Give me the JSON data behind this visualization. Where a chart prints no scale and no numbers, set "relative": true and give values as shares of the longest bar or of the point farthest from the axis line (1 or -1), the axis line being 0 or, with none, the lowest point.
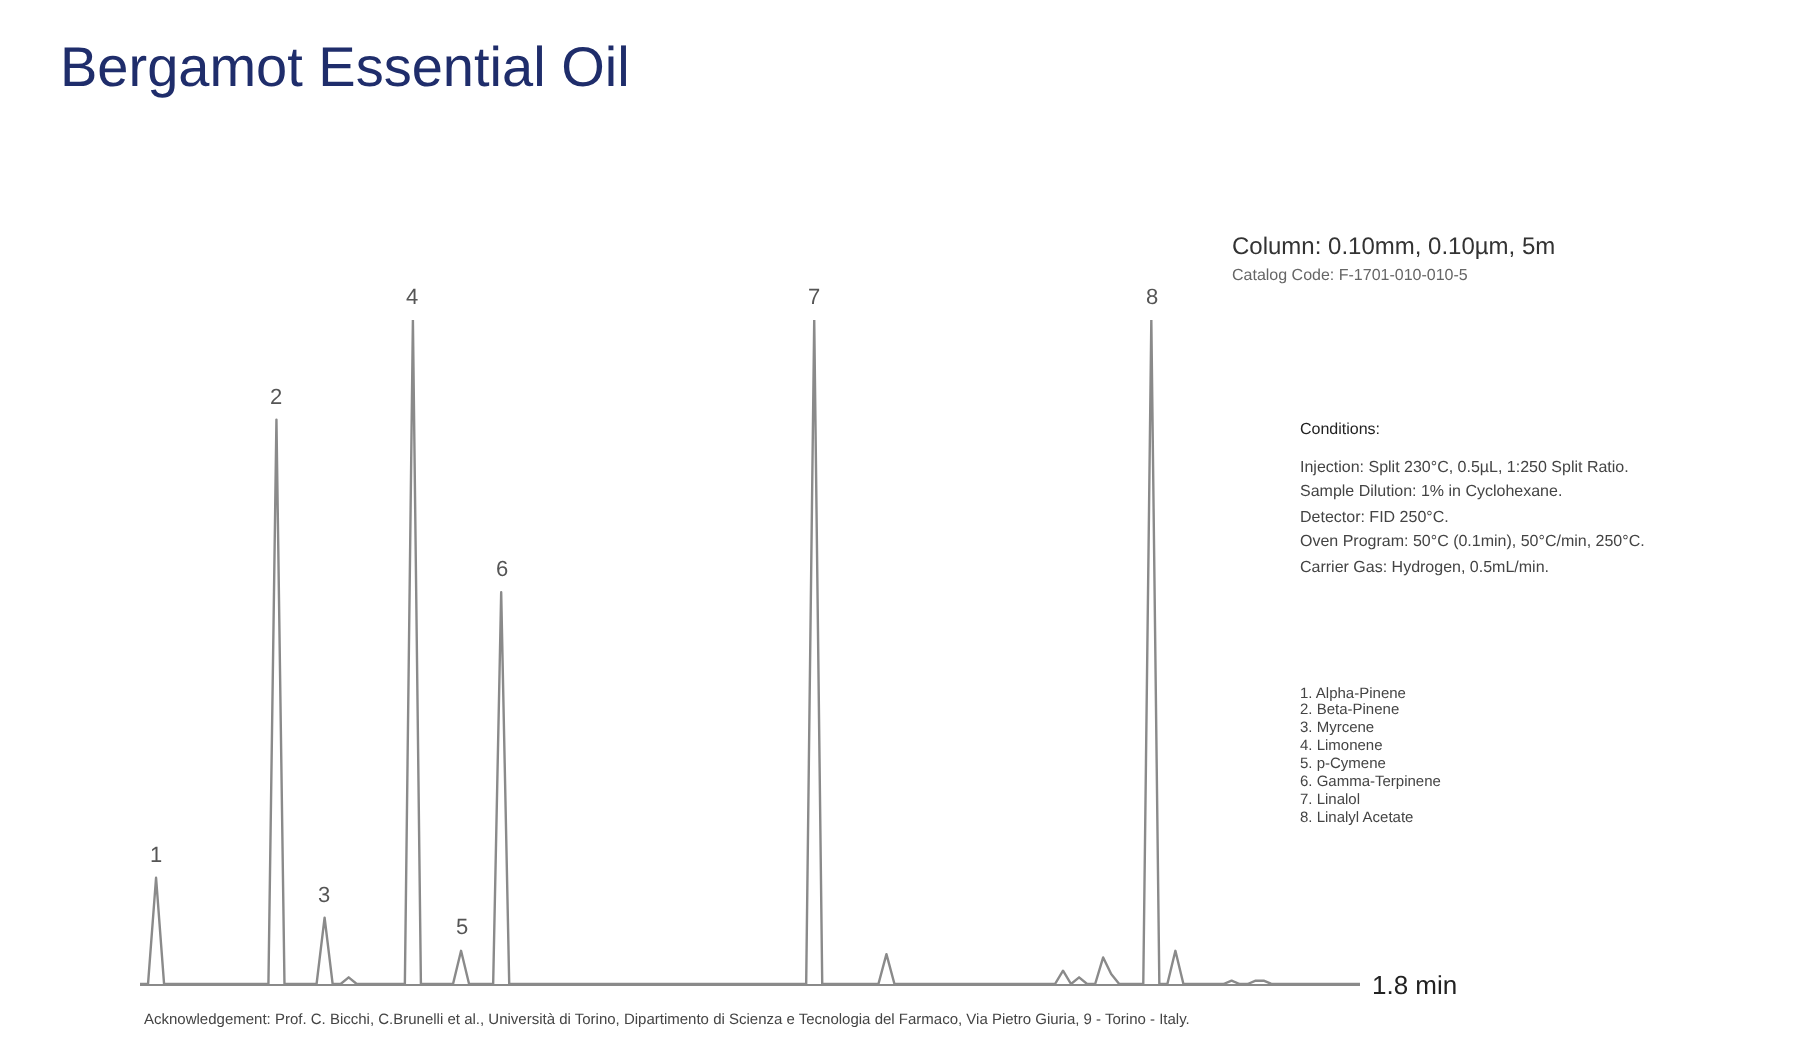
{
  "chart_data": {
    "type": "line",
    "title": "Bergamot Essential Oil",
    "relative": true,
    "categories": [
      null,
      null,
      null,
      null,
      null,
      null,
      null,
      null,
      null,
      null,
      null,
      null,
      null,
      null,
      null,
      null,
      null,
      null,
      null,
      null,
      null,
      null,
      null,
      null,
      null,
      null,
      null,
      null,
      null,
      null,
      null,
      null,
      null,
      null,
      null,
      null,
      null,
      null,
      null,
      null,
      null,
      null,
      null,
      null,
      null,
      null,
      null,
      null,
      null,
      null,
      null,
      null,
      null,
      null,
      null,
      null,
      null,
      null,
      null,
      null,
      null,
      null,
      null,
      null,
      null,
      null,
      null,
      null,
      null,
      null,
      null,
      null,
      null,
      null,
      null,
      null,
      null,
      null,
      null,
      null,
      null,
      null,
      null,
      null,
      null,
      null,
      null,
      null,
      null,
      null,
      null,
      null,
      null,
      null,
      null,
      null,
      null,
      null,
      null,
      null,
      null,
      null,
      null,
      null,
      null,
      null,
      null,
      null,
      null,
      null,
      null,
      null,
      null,
      null,
      null,
      null,
      null,
      null,
      null,
      null,
      null,
      null,
      null,
      null,
      null,
      null,
      null,
      null,
      null,
      null,
      null,
      null,
      null,
      null,
      null,
      null,
      null,
      null,
      null,
      null,
      null,
      null,
      null,
      null,
      null,
      null,
      null,
      null,
      null,
      null,
      null,
      null,
      null
    ],
    "series": [
      {
        "color": "#8a8a8a",
        "values": [
          0,
          0,
          0.16,
          0,
          0,
          0,
          0,
          0,
          0,
          0,
          0,
          0,
          0,
          0,
          0,
          0,
          0,
          0.85,
          0,
          0,
          0,
          0,
          0,
          0.1,
          0,
          0,
          0.01,
          0,
          0,
          0,
          0,
          0,
          0,
          0,
          1,
          0,
          0,
          0,
          0,
          0,
          0.05,
          0,
          0,
          0,
          0,
          0.59,
          0,
          0,
          0,
          0,
          0,
          0,
          0,
          0,
          0,
          0,
          0,
          0,
          0,
          0,
          0,
          0,
          0,
          0,
          0,
          0,
          0,
          0,
          0,
          0,
          0,
          0,
          0,
          0,
          0,
          0,
          0,
          0,
          0,
          0,
          0,
          0,
          0,
          0,
          1,
          0,
          0,
          0,
          0,
          0,
          0,
          0,
          0,
          0.045,
          0,
          0,
          0,
          0,
          0,
          0,
          0,
          0,
          0,
          0,
          0,
          0,
          0,
          0,
          0,
          0,
          0,
          0,
          0,
          0,
          0,
          0.02,
          0,
          0.01,
          0,
          0,
          0.04,
          0.015,
          0,
          0,
          0,
          0,
          1,
          0,
          0,
          0.05,
          0,
          0,
          0,
          0,
          0,
          0,
          0.005,
          0,
          0,
          0.005,
          0.005,
          0,
          0,
          0,
          0,
          0,
          0,
          0,
          0,
          0,
          0,
          0,
          0
        ]
      }
    ],
    "annotations": [
      {
        "text": "1",
        "y": 0.16
      },
      {
        "text": "2",
        "y": 0.85
      },
      {
        "text": "3",
        "y": 0.1
      },
      {
        "text": "4",
        "y": 1
      },
      {
        "text": "5",
        "y": 0.05
      },
      {
        "text": "6",
        "y": 0.59
      },
      {
        "text": "7",
        "y": 1
      },
      {
        "text": "8",
        "y": 1
      },
      "1.8 min",
      "Column: 0.10mm, 0.10µm, 5m",
      "Catalog Code: F-1701-010-010-5",
      "Conditions:",
      "Injection: Split 230°C, 0.5µL, 1:250 Split Ratio.",
      "Sample Dilution: 1% in Cyclohexane.",
      "Detector: FID 250°C.",
      "Oven Program: 50°C (0.1min), 50°C/min, 250°C.",
      "Carrier Gas: Hydrogen, 0.5mL/min.",
      "1. Alpha-Pinene",
      "2. Beta-Pinene",
      "3. Myrcene",
      "4. Limonene",
      "5. p-Cymene",
      "6. Gamma-Terpinene",
      "7. Linalol",
      "8. Linalyl Acetate",
      "Acknowledgement: Prof. C. Bicchi, C.Brunelli et al., Università di Torino, Dipartimento di Scienza e Tecnologia del Farmaco, Via Pietro Giuria, 9 - Torino - Italy."
    ]
  }
}
